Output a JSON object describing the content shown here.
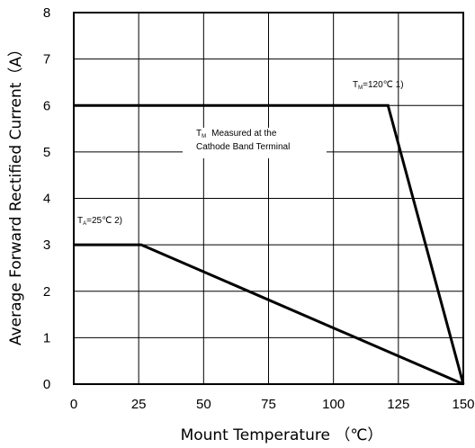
{
  "chart_data": {
    "type": "line",
    "title": "",
    "xlabel": "Mount Temperature （℃）",
    "ylabel": "Average Forward Rectified Current（A）",
    "xlim": [
      0,
      150
    ],
    "ylim": [
      0,
      8
    ],
    "x_ticks": [
      0,
      25,
      50,
      75,
      100,
      125,
      150
    ],
    "y_ticks": [
      0,
      1,
      2,
      3,
      4,
      5,
      6,
      7,
      8
    ],
    "grid": true,
    "legend": "none",
    "series": [
      {
        "x": [
          0,
          121,
          150
        ],
        "y": [
          6,
          6,
          0
        ],
        "color": "#000000"
      },
      {
        "x": [
          0,
          26,
          150
        ],
        "y": [
          3,
          3,
          0
        ],
        "color": "#000000"
      }
    ],
    "annotations": [
      {
        "main": "T",
        "sub": "M",
        "rest": "=120℃ 1)",
        "x": 122,
        "y": 6.3
      },
      {
        "lines": [
          "T",
          "M",
          "Measured at the",
          "Cathode Band Terminal"
        ],
        "x": 61,
        "y": 5.2
      },
      {
        "main": "T",
        "sub": "A",
        "rest": "=25℃ 2)",
        "x": 1,
        "y": 3.5
      }
    ]
  }
}
